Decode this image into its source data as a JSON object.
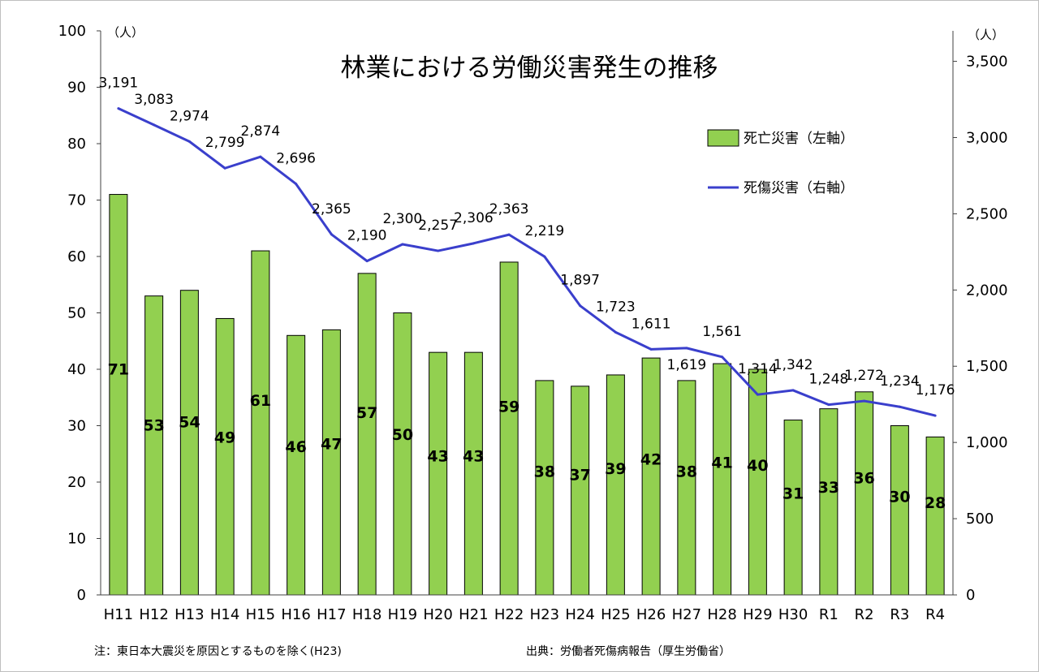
{
  "chart_data": {
    "type": "bar+line",
    "title": "林業における労働災害発生の推移",
    "categories": [
      "H11",
      "H12",
      "H13",
      "H14",
      "H15",
      "H16",
      "H17",
      "H18",
      "H19",
      "H20",
      "H21",
      "H22",
      "H23",
      "H24",
      "H25",
      "H26",
      "H27",
      "H28",
      "H29",
      "H30",
      "R1",
      "R2",
      "R3",
      "R4"
    ],
    "series": [
      {
        "name": "死亡災害（左軸）",
        "type": "bar",
        "axis": "left",
        "color": "#92D050",
        "values": [
          71,
          53,
          54,
          49,
          61,
          46,
          47,
          57,
          50,
          43,
          43,
          59,
          38,
          37,
          39,
          42,
          38,
          41,
          40,
          31,
          33,
          36,
          30,
          28
        ]
      },
      {
        "name": "死傷災害（右軸）",
        "type": "line",
        "axis": "right",
        "color": "#3A3FCC",
        "values": [
          3191,
          3083,
          2974,
          2799,
          2874,
          2696,
          2365,
          2190,
          2300,
          2257,
          2306,
          2363,
          2219,
          1897,
          1723,
          1611,
          1619,
          1561,
          1314,
          1342,
          1248,
          1272,
          1234,
          1176
        ],
        "labels": [
          "3,191",
          "3,083",
          "2,974",
          "2,799",
          "2,874",
          "2,696",
          "2,365",
          "2,190",
          "2,300",
          "2,257",
          "2,306",
          "2,363",
          "2,219",
          "1,897",
          "1,723",
          "1,611",
          "1,619",
          "1,561",
          "1,314",
          "1,342",
          "1,248",
          "1,272",
          "1,234",
          "1,176"
        ]
      }
    ],
    "y_left": {
      "min": 0,
      "max": 100,
      "ticks": [
        0,
        10,
        20,
        30,
        40,
        50,
        60,
        70,
        80,
        90,
        100
      ],
      "tick_labels": [
        "0",
        "10",
        "20",
        "30",
        "40",
        "50",
        "60",
        "70",
        "80",
        "90",
        "100"
      ],
      "unit": "（人）"
    },
    "y_right": {
      "min": 0,
      "max": 3700,
      "ticks": [
        0,
        500,
        1000,
        1500,
        2000,
        2500,
        3000,
        3500
      ],
      "tick_labels": [
        "0",
        "500",
        "1,000",
        "1,500",
        "2,000",
        "2,500",
        "3,000",
        "3,500"
      ],
      "unit": "（人）"
    },
    "legend_position": "top-right",
    "note_left": "注：東日本大震災を原因とするものを除く(H23)",
    "note_right": "出典：労働者死傷病報告（厚生労働省）"
  }
}
